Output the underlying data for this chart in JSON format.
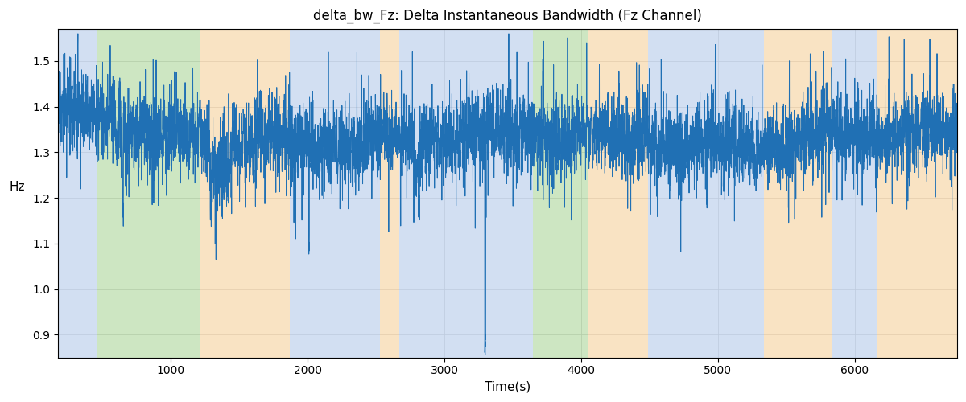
{
  "title": "delta_bw_Fz: Delta Instantaneous Bandwidth (Fz Channel)",
  "xlabel": "Time(s)",
  "ylabel": "Hz",
  "xlim": [
    175,
    6750
  ],
  "ylim": [
    0.85,
    1.57
  ],
  "yticks": [
    0.9,
    1.0,
    1.1,
    1.2,
    1.3,
    1.4,
    1.5
  ],
  "xticks": [
    1000,
    2000,
    3000,
    4000,
    5000,
    6000
  ],
  "line_color": "#2070b4",
  "line_width": 0.7,
  "background_regions": [
    {
      "xstart": 175,
      "xend": 455,
      "color": "#aec6e8",
      "alpha": 0.55
    },
    {
      "xstart": 455,
      "xend": 1210,
      "color": "#90c878",
      "alpha": 0.45
    },
    {
      "xstart": 1210,
      "xend": 1870,
      "color": "#f5c888",
      "alpha": 0.5
    },
    {
      "xstart": 1870,
      "xend": 2530,
      "color": "#aec6e8",
      "alpha": 0.55
    },
    {
      "xstart": 2530,
      "xend": 2670,
      "color": "#f5c888",
      "alpha": 0.5
    },
    {
      "xstart": 2670,
      "xend": 3650,
      "color": "#aec6e8",
      "alpha": 0.55
    },
    {
      "xstart": 3650,
      "xend": 4050,
      "color": "#90c878",
      "alpha": 0.45
    },
    {
      "xstart": 4050,
      "xend": 4490,
      "color": "#f5c888",
      "alpha": 0.5
    },
    {
      "xstart": 4490,
      "xend": 5340,
      "color": "#aec6e8",
      "alpha": 0.55
    },
    {
      "xstart": 5340,
      "xend": 5840,
      "color": "#f5c888",
      "alpha": 0.5
    },
    {
      "xstart": 5840,
      "xend": 6160,
      "color": "#aec6e8",
      "alpha": 0.55
    },
    {
      "xstart": 6160,
      "xend": 6750,
      "color": "#f5c888",
      "alpha": 0.5
    }
  ],
  "seed": 17,
  "n_points": 6600
}
